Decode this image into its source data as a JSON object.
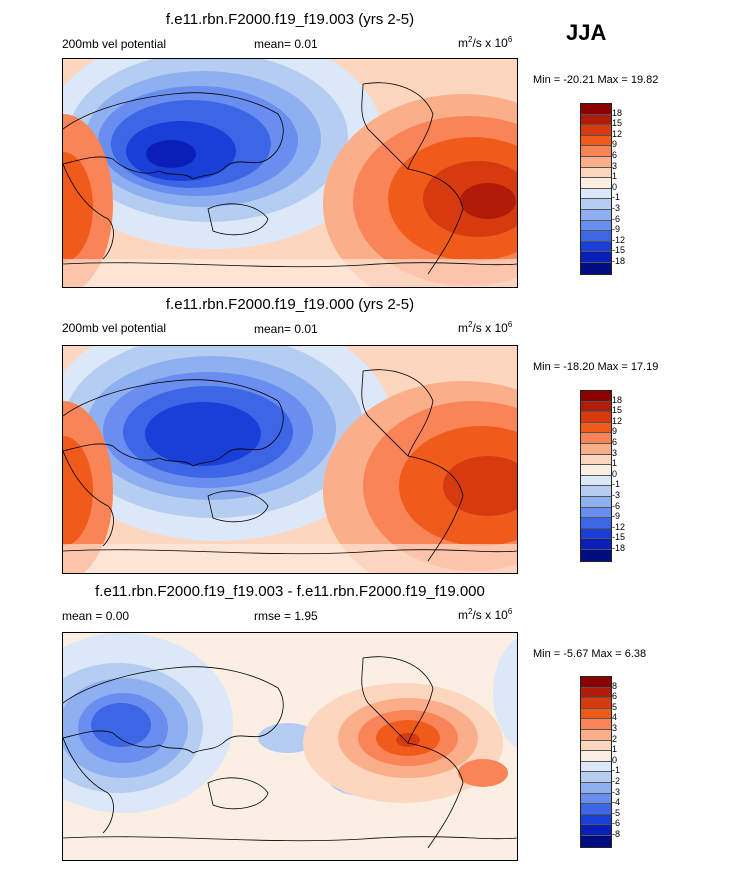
{
  "season": "JJA",
  "panels": [
    {
      "title": "f.e11.rbn.F2000.f19_f19.003 (yrs 2-5)",
      "left": "200mb vel potential",
      "center": "mean=  0.01",
      "units_main": "m",
      "units_sup1": "2",
      "units_mid": "/s x 10",
      "units_sup2": "6",
      "minmax": "Min = -20.21 Max =  19.82",
      "colorbar": {
        "colors": [
          "#8b0000",
          "#b01c08",
          "#d83a10",
          "#f05a1a",
          "#f98457",
          "#fbae8a",
          "#fdd6bf",
          "#fbeee2",
          "#dce8f8",
          "#b6cdf2",
          "#8eaff0",
          "#6a8ef0",
          "#3d66e6",
          "#1a3fd8",
          "#0a1fb8",
          "#000c80"
        ],
        "labels": [
          "18",
          "15",
          "12",
          "9",
          "6",
          "3",
          "1",
          "0",
          "-1",
          "-3",
          "-6",
          "-9",
          "-12",
          "-15",
          "-18"
        ]
      }
    },
    {
      "title": "f.e11.rbn.F2000.f19_f19.000 (yrs 2-5)",
      "left": "200mb vel potential",
      "center": "mean=  0.01",
      "units_main": "m",
      "units_sup1": "2",
      "units_mid": "/s x 10",
      "units_sup2": "6",
      "minmax": "Min = -18.20 Max =  17.19",
      "colorbar": {
        "colors": [
          "#8b0000",
          "#b01c08",
          "#d83a10",
          "#f05a1a",
          "#f98457",
          "#fbae8a",
          "#fdd6bf",
          "#fbeee2",
          "#dce8f8",
          "#b6cdf2",
          "#8eaff0",
          "#6a8ef0",
          "#3d66e6",
          "#1a3fd8",
          "#0a1fb8",
          "#000c80"
        ],
        "labels": [
          "18",
          "15",
          "12",
          "9",
          "6",
          "3",
          "1",
          "0",
          "-1",
          "-3",
          "-6",
          "-9",
          "-12",
          "-15",
          "-18"
        ]
      }
    },
    {
      "title": "f.e11.rbn.F2000.f19_f19.003 - f.e11.rbn.F2000.f19_f19.000",
      "left": "mean =   0.00",
      "center": "rmse =   1.95",
      "units_main": "m",
      "units_sup1": "2",
      "units_mid": "/s x 10",
      "units_sup2": "6",
      "minmax": "Min =  -5.67 Max =   6.38",
      "colorbar": {
        "colors": [
          "#8b0000",
          "#b01c08",
          "#d83a10",
          "#f05a1a",
          "#f98457",
          "#fbae8a",
          "#fdd6bf",
          "#fbeee2",
          "#dce8f8",
          "#b6cdf2",
          "#8eaff0",
          "#6a8ef0",
          "#3d66e6",
          "#1a3fd8",
          "#0a1fb8",
          "#000c80"
        ],
        "labels": [
          "8",
          "6",
          "5",
          "4",
          "3",
          "2",
          "1",
          "0",
          "-1",
          "-2",
          "-3",
          "-4",
          "-5",
          "-6",
          "-8"
        ]
      }
    }
  ]
}
